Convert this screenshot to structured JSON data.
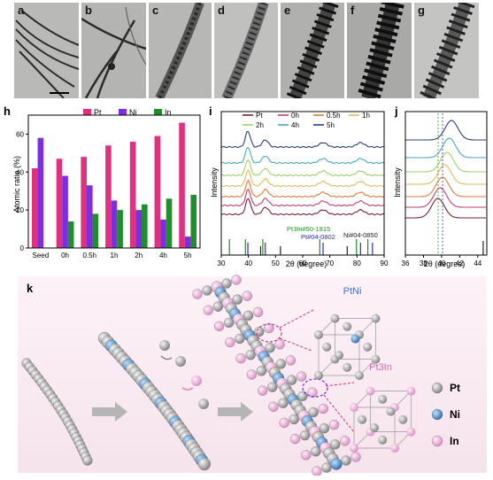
{
  "panels": {
    "a": "a",
    "b": "b",
    "c": "c",
    "d": "d",
    "e": "e",
    "f": "f",
    "g": "g",
    "h": "h",
    "i": "i",
    "j": "j",
    "k": "k"
  },
  "chart_data": [
    {
      "panel": "h",
      "type": "bar",
      "categories": [
        "Seed",
        "0h",
        "0.5h",
        "1h",
        "2h",
        "4h",
        "5h"
      ],
      "series": [
        {
          "name": "Pt",
          "color": "#e0307e",
          "values": [
            42,
            47,
            48,
            54,
            56,
            59,
            66
          ]
        },
        {
          "name": "Ni",
          "color": "#7b2fe0",
          "values": [
            58,
            38,
            33,
            25,
            20,
            15,
            6
          ]
        },
        {
          "name": "In",
          "color": "#1e8f2a",
          "values": [
            0,
            14,
            18,
            20,
            23,
            26,
            28
          ]
        }
      ],
      "ylabel": "Atomic ratio (%)",
      "yticks": [
        "0",
        "20",
        "40",
        "60"
      ],
      "ylim": [
        0,
        70
      ],
      "legend": "top-center"
    },
    {
      "panel": "i",
      "type": "line",
      "xlabel": "2θ (degree)",
      "ylabel": "Intensity",
      "xlim": [
        30,
        90
      ],
      "xticks": [
        "30",
        "40",
        "50",
        "60",
        "70",
        "80",
        "90"
      ],
      "legend": [
        {
          "name": "Pt",
          "color": "#7a1f3a"
        },
        {
          "name": "0h",
          "color": "#c2406a"
        },
        {
          "name": "0.5h",
          "color": "#e07a3c"
        },
        {
          "name": "1h",
          "color": "#e6b85a"
        },
        {
          "name": "2h",
          "color": "#9ed06a"
        },
        {
          "name": "4h",
          "color": "#4aa6c8"
        },
        {
          "name": "5h",
          "color": "#2c3c7a"
        }
      ],
      "reference_labels": [
        "Pt3In#50-1815",
        "Pt#04-0802",
        "Ni#04-0850"
      ],
      "reference_colors": [
        "#1e8f2a",
        "#2d2db0",
        "#222222"
      ]
    },
    {
      "panel": "j",
      "type": "line",
      "xlabel": "2θ (degree)",
      "ylabel": "Intensity",
      "xlim": [
        36,
        45
      ],
      "xticks": [
        "36",
        "38",
        "40",
        "42",
        "44"
      ]
    }
  ],
  "schematic": {
    "pt_ni_label": "PtNi",
    "pt3in_label": "Pt3In",
    "legend": [
      {
        "symbol": "Pt",
        "color": "#a9a9a9"
      },
      {
        "symbol": "Ni",
        "color": "#3f86c7"
      },
      {
        "symbol": "In",
        "color": "#e6a9d3"
      }
    ]
  }
}
